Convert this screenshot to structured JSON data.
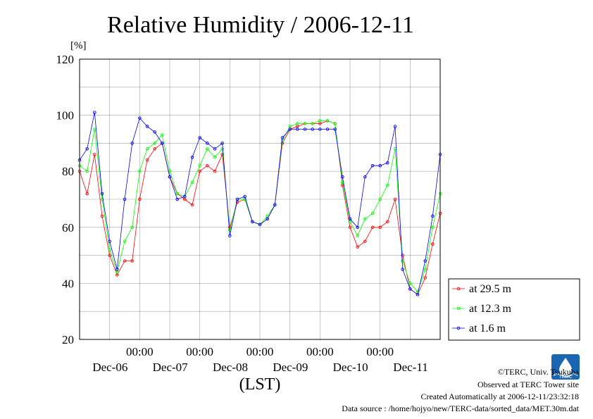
{
  "chart_data": {
    "type": "line",
    "title": "Relative Humidity / 2006-12-11",
    "ylabel": "[%]",
    "xlabel": "(LST)",
    "ylim": [
      20,
      120
    ],
    "yticks": [
      20,
      40,
      60,
      80,
      100,
      120
    ],
    "x_unit": "hours since 2006-12-05 00:00 LST",
    "xlim": [
      12,
      156
    ],
    "time_ticks": [
      {
        "x": 36,
        "time": "00:00",
        "date": "Dec-06"
      },
      {
        "x": 60,
        "time": "00:00",
        "date": "Dec-07"
      },
      {
        "x": 84,
        "time": "00:00",
        "date": "Dec-08"
      },
      {
        "x": 108,
        "time": "00:00",
        "date": "Dec-09"
      },
      {
        "x": 132,
        "time": "00:00",
        "date": "Dec-10"
      },
      {
        "x": null,
        "time": "",
        "date": "Dec-11"
      }
    ],
    "grid": true,
    "legend_position": "right",
    "x": [
      12,
      15,
      18,
      21,
      24,
      27,
      30,
      33,
      36,
      39,
      42,
      45,
      48,
      51,
      54,
      57,
      60,
      63,
      66,
      69,
      72,
      75,
      78,
      81,
      84,
      87,
      90,
      93,
      96,
      99,
      102,
      105,
      108,
      111,
      114,
      117,
      120,
      123,
      126,
      129,
      132,
      135,
      138,
      141,
      144,
      147,
      150,
      153,
      156
    ],
    "series": [
      {
        "name": "at 29.5 m",
        "color": "#ff0000",
        "values": [
          80,
          72,
          86,
          64,
          50,
          43,
          48,
          48,
          70,
          84,
          88,
          90,
          78,
          72,
          70,
          68,
          80,
          82,
          80,
          86,
          60,
          69,
          70,
          62,
          61,
          63,
          68,
          90,
          95,
          96,
          97,
          97,
          97,
          98,
          97,
          75,
          60,
          53,
          55,
          60,
          60,
          62,
          70,
          50,
          38,
          36,
          42,
          54,
          65
        ]
      },
      {
        "name": "at 12.3 m",
        "color": "#00ff00",
        "values": [
          82,
          80,
          95,
          70,
          52,
          44,
          55,
          60,
          80,
          88,
          90,
          93,
          80,
          72,
          71,
          76,
          82,
          88,
          85,
          88,
          59,
          70,
          70,
          62,
          61,
          64,
          68,
          91,
          96,
          97,
          97,
          97,
          98,
          98,
          97,
          76,
          62,
          57,
          63,
          65,
          70,
          75,
          88,
          48,
          40,
          37,
          45,
          60,
          72
        ]
      },
      {
        "name": "at 1.6 m",
        "color": "#0000ff",
        "values": [
          84,
          88,
          101,
          72,
          55,
          45,
          70,
          90,
          99,
          96,
          94,
          90,
          78,
          70,
          71,
          85,
          92,
          90,
          88,
          90,
          57,
          70,
          71,
          62,
          61,
          63,
          68,
          92,
          95,
          95,
          95,
          95,
          95,
          95,
          95,
          78,
          63,
          60,
          78,
          82,
          82,
          83,
          96,
          45,
          38,
          36,
          48,
          64,
          86
        ]
      }
    ],
    "legend": [
      "at 29.5 m",
      "at 12.3 m",
      "at 1.6 m"
    ]
  },
  "footer": {
    "copyright": "©TERC, Univ. Tsukuba",
    "observed": "Observed at TERC Tower site",
    "created": "Created Automatically at 2006-12-11/23:32:18",
    "source": "Data source : /home/hojyo/new/TERC-data/sorted_data/MET.30m.dat"
  },
  "logo": {
    "text": "TERC",
    "icon": "terc-logo-icon",
    "color": "#1a66b3"
  }
}
